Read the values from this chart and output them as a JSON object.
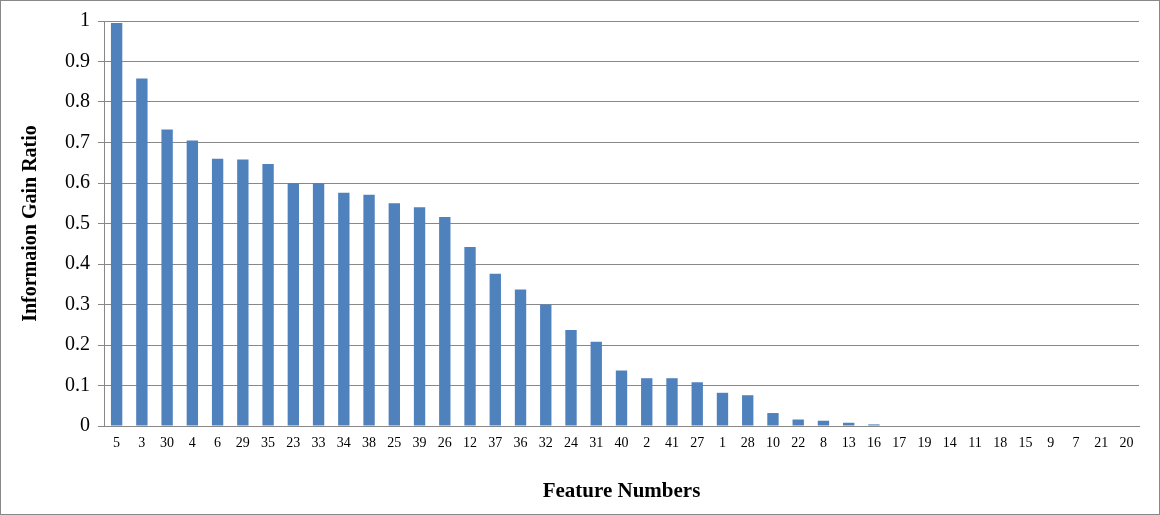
{
  "chart_data": {
    "type": "bar",
    "xlabel": "Feature Numbers",
    "ylabel": "Informaion Gain Ratio",
    "categories": [
      "5",
      "3",
      "30",
      "4",
      "6",
      "29",
      "35",
      "23",
      "33",
      "34",
      "38",
      "25",
      "39",
      "26",
      "12",
      "37",
      "36",
      "32",
      "24",
      "31",
      "40",
      "2",
      "41",
      "27",
      "1",
      "28",
      "10",
      "22",
      "8",
      "13",
      "16",
      "17",
      "19",
      "14",
      "11",
      "18",
      "15",
      "9",
      "7",
      "21",
      "20"
    ],
    "values": [
      0.995,
      0.858,
      0.732,
      0.705,
      0.66,
      0.658,
      0.647,
      0.6,
      0.6,
      0.576,
      0.571,
      0.55,
      0.54,
      0.516,
      0.442,
      0.376,
      0.337,
      0.3,
      0.237,
      0.208,
      0.137,
      0.118,
      0.118,
      0.108,
      0.082,
      0.076,
      0.032,
      0.016,
      0.013,
      0.008,
      0.004,
      0,
      0,
      0,
      0,
      0,
      0,
      0,
      0,
      0,
      0
    ],
    "color": "#4f81bd",
    "ylim": [
      0,
      1
    ],
    "yticks": [
      0,
      0.1,
      0.2,
      0.3,
      0.4,
      0.5,
      0.6,
      0.7,
      0.8,
      0.9,
      1
    ],
    "grid": "y",
    "legend": false
  }
}
